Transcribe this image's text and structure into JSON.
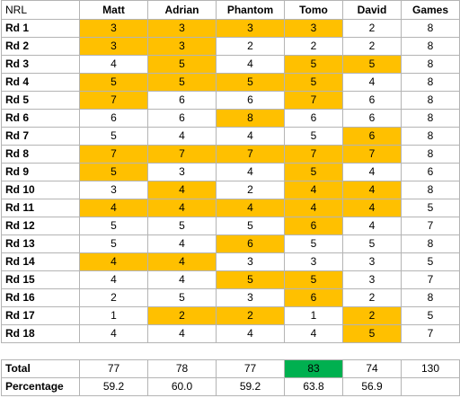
{
  "corner_label": "NRL",
  "columns": [
    "Matt",
    "Adrian",
    "Phantom",
    "Tomo",
    "David",
    "Games"
  ],
  "rows": [
    {
      "label": "Rd 1",
      "values": [
        "3",
        "3",
        "3",
        "3",
        "2",
        "8"
      ],
      "highlight": [
        true,
        true,
        true,
        true,
        false,
        false
      ]
    },
    {
      "label": "Rd 2",
      "values": [
        "3",
        "3",
        "2",
        "2",
        "2",
        "8"
      ],
      "highlight": [
        true,
        true,
        false,
        false,
        false,
        false
      ]
    },
    {
      "label": "Rd 3",
      "values": [
        "4",
        "5",
        "4",
        "5",
        "5",
        "8"
      ],
      "highlight": [
        false,
        true,
        false,
        true,
        true,
        false
      ]
    },
    {
      "label": "Rd 4",
      "values": [
        "5",
        "5",
        "5",
        "5",
        "4",
        "8"
      ],
      "highlight": [
        true,
        true,
        true,
        true,
        false,
        false
      ]
    },
    {
      "label": "Rd 5",
      "values": [
        "7",
        "6",
        "6",
        "7",
        "6",
        "8"
      ],
      "highlight": [
        true,
        false,
        false,
        true,
        false,
        false
      ]
    },
    {
      "label": "Rd 6",
      "values": [
        "6",
        "6",
        "8",
        "6",
        "6",
        "8"
      ],
      "highlight": [
        false,
        false,
        true,
        false,
        false,
        false
      ]
    },
    {
      "label": "Rd 7",
      "values": [
        "5",
        "4",
        "4",
        "5",
        "6",
        "8"
      ],
      "highlight": [
        false,
        false,
        false,
        false,
        true,
        false
      ]
    },
    {
      "label": "Rd 8",
      "values": [
        "7",
        "7",
        "7",
        "7",
        "7",
        "8"
      ],
      "highlight": [
        true,
        true,
        true,
        true,
        true,
        false
      ]
    },
    {
      "label": "Rd 9",
      "values": [
        "5",
        "3",
        "4",
        "5",
        "4",
        "6"
      ],
      "highlight": [
        true,
        false,
        false,
        true,
        false,
        false
      ]
    },
    {
      "label": "Rd 10",
      "values": [
        "3",
        "4",
        "2",
        "4",
        "4",
        "8"
      ],
      "highlight": [
        false,
        true,
        false,
        true,
        true,
        false
      ]
    },
    {
      "label": "Rd 11",
      "values": [
        "4",
        "4",
        "4",
        "4",
        "4",
        "5"
      ],
      "highlight": [
        true,
        true,
        true,
        true,
        true,
        false
      ]
    },
    {
      "label": "Rd 12",
      "values": [
        "5",
        "5",
        "5",
        "6",
        "4",
        "7"
      ],
      "highlight": [
        false,
        false,
        false,
        true,
        false,
        false
      ]
    },
    {
      "label": "Rd 13",
      "values": [
        "5",
        "4",
        "6",
        "5",
        "5",
        "8"
      ],
      "highlight": [
        false,
        false,
        true,
        false,
        false,
        false
      ]
    },
    {
      "label": "Rd 14",
      "values": [
        "4",
        "4",
        "3",
        "3",
        "3",
        "5"
      ],
      "highlight": [
        true,
        true,
        false,
        false,
        false,
        false
      ]
    },
    {
      "label": "Rd 15",
      "values": [
        "4",
        "4",
        "5",
        "5",
        "3",
        "7"
      ],
      "highlight": [
        false,
        false,
        true,
        true,
        false,
        false
      ]
    },
    {
      "label": "Rd 16",
      "values": [
        "2",
        "5",
        "3",
        "6",
        "2",
        "8"
      ],
      "highlight": [
        false,
        false,
        false,
        true,
        false,
        false
      ]
    },
    {
      "label": "Rd 17",
      "values": [
        "1",
        "2",
        "2",
        "1",
        "2",
        "5"
      ],
      "highlight": [
        false,
        true,
        true,
        false,
        true,
        false
      ]
    },
    {
      "label": "Rd 18",
      "values": [
        "4",
        "4",
        "4",
        "4",
        "5",
        "7"
      ],
      "highlight": [
        false,
        false,
        false,
        false,
        true,
        false
      ]
    }
  ],
  "total": {
    "label": "Total",
    "values": [
      "77",
      "78",
      "77",
      "83",
      "74",
      "130"
    ],
    "best_index": 3
  },
  "percentage": {
    "label": "Percentage",
    "values": [
      "59.2",
      "60.0",
      "59.2",
      "63.8",
      "56.9",
      ""
    ]
  },
  "colors": {
    "highlight": "#ffc000",
    "best": "#00b050",
    "grid": "#b4b4b4"
  }
}
